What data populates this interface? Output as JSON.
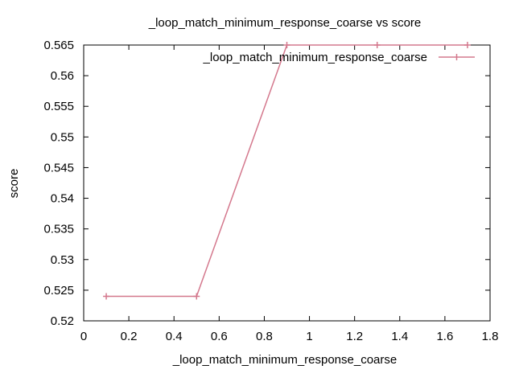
{
  "chart_data": {
    "type": "line",
    "title": "_loop_match_minimum_response_coarse vs score",
    "xlabel": "_loop_match_minimum_response_coarse",
    "ylabel": "score",
    "xlim": [
      0,
      1.8
    ],
    "ylim": [
      0.52,
      0.565
    ],
    "x_ticks": [
      "0",
      "0.2",
      "0.4",
      "0.6",
      "0.8",
      "1",
      "1.2",
      "1.4",
      "1.6",
      "1.8"
    ],
    "y_ticks": [
      "0.52",
      "0.525",
      "0.53",
      "0.535",
      "0.54",
      "0.545",
      "0.55",
      "0.555",
      "0.56",
      "0.565"
    ],
    "legend_position": "top-right",
    "grid": false,
    "series": [
      {
        "name": "_loop_match_minimum_response_coarse",
        "color": "#d4788d",
        "marker": "plus",
        "x": [
          0.1,
          0.5,
          0.9,
          1.3,
          1.7
        ],
        "y": [
          0.524,
          0.524,
          0.565,
          0.565,
          0.565
        ]
      }
    ]
  }
}
